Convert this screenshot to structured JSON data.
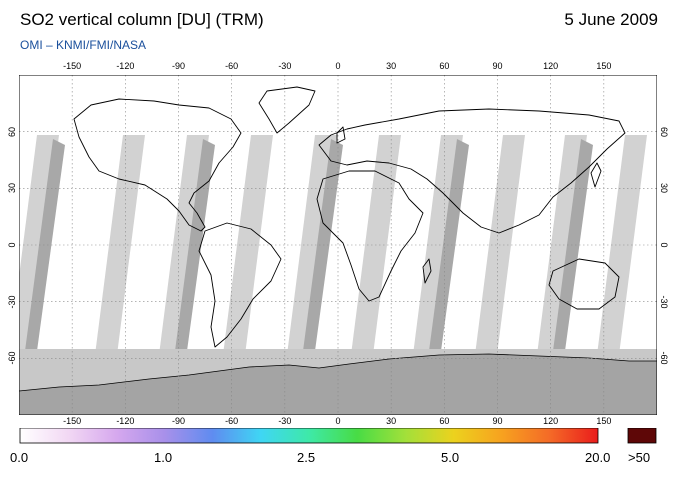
{
  "header": {
    "title": "SO2 vertical column [DU] (TRM)",
    "date": "5 June 2009",
    "subtitle": "OMI  –  KNMI/FMI/NASA"
  },
  "axes": {
    "lon_ticks": [
      "-150",
      "-120",
      "-90",
      "-60",
      "-30",
      "0",
      "30",
      "60",
      "90",
      "120",
      "150"
    ],
    "lat_ticks": [
      "60",
      "30",
      "0",
      "-30",
      "-60"
    ]
  },
  "colorbar": {
    "labels": [
      "0.0",
      "1.0",
      "2.5",
      "5.0",
      "20.0"
    ],
    "overflow_label": ">50",
    "gradient_colors": [
      "#ffffff",
      "#f2d8f4",
      "#d6a8ee",
      "#a890ea",
      "#5f8cf0",
      "#3fd6f4",
      "#3ee9a8",
      "#48dc45",
      "#a2e03a",
      "#ecd21e",
      "#f7a21f",
      "#f46a27",
      "#ea1c1c"
    ],
    "overflow_color": "#5e0707"
  },
  "colors": {
    "land_outline": "#000000",
    "orbit_gap": "#d2d2d2",
    "orbit_overlap": "#a8a8a8",
    "antarctic_band": "#c8c8c8",
    "antarctica": "#a4a4a4"
  }
}
